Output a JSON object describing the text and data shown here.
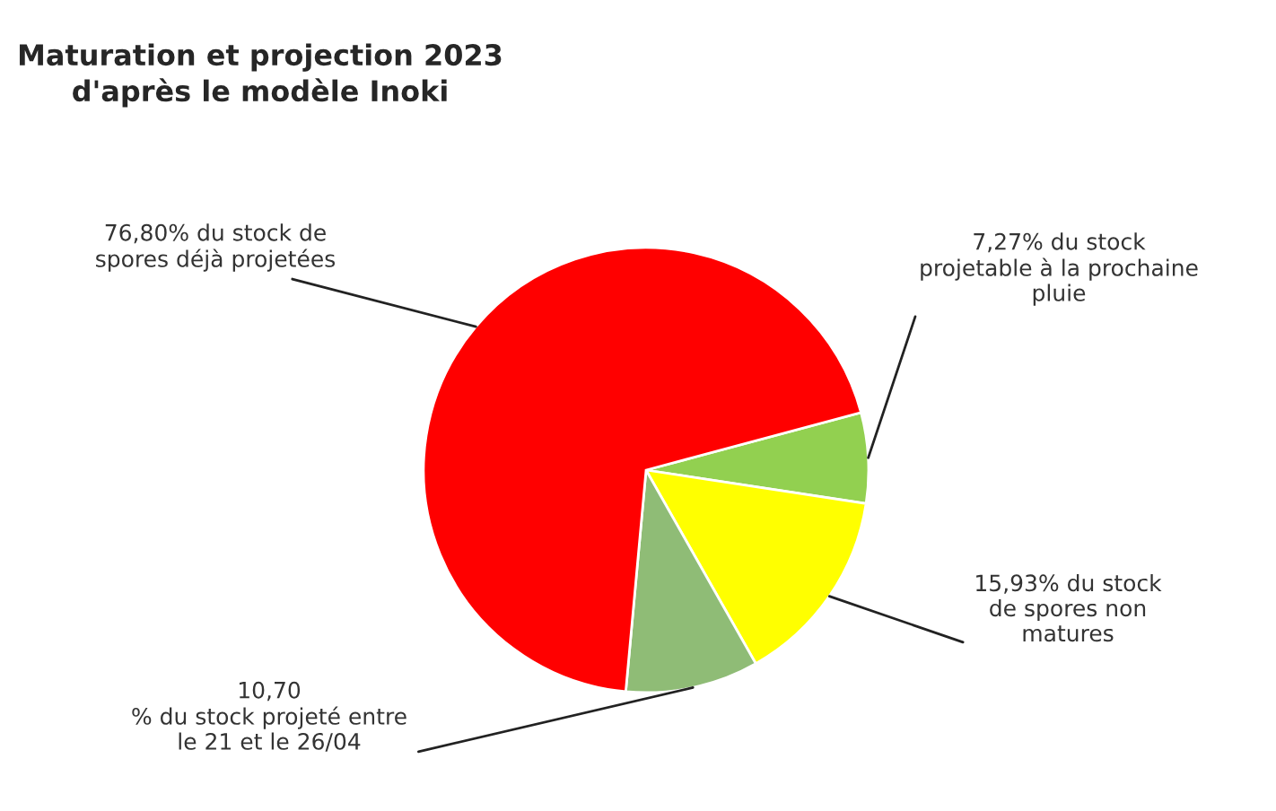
{
  "chart_data": {
    "type": "pie",
    "title": "Maturation et projection 2023\nd'après le modèle Inoki",
    "categories": [
      "7,27% du stock\nprojetable à la prochaine\npluie",
      "15,93% du stock\nde spores non\nmatures",
      "10,70\n% du stock projeté entre\nle 21 et le 26/04",
      "76,80% du stock de\nspores déjà projetées"
    ],
    "values": [
      7.27,
      15.93,
      10.7,
      76.8
    ],
    "colors": [
      "#92d050",
      "#ffff00",
      "#8fbc76",
      "#ff0000"
    ],
    "legend": false
  }
}
